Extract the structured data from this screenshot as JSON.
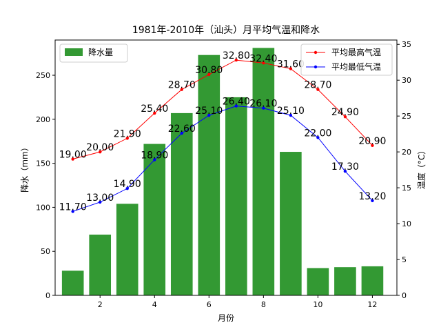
{
  "chart_data": {
    "type": "bar+line",
    "title": "1981年-2010年（汕头）月平均气温和降水",
    "xlabel": "月份",
    "ylabel_left": "降水（mm）",
    "ylabel_right": "温度（°C）",
    "x": [
      1,
      2,
      3,
      4,
      5,
      6,
      7,
      8,
      9,
      10,
      11,
      12
    ],
    "xticks": [
      2,
      4,
      6,
      8,
      10,
      12
    ],
    "xlim": [
      0.35,
      12.9
    ],
    "ylim_left": [
      0,
      290
    ],
    "yticks_left": [
      0,
      50,
      100,
      150,
      200,
      250
    ],
    "ylim_right": [
      0,
      35.6
    ],
    "yticks_right": [
      0,
      5,
      10,
      15,
      20,
      25,
      30,
      35
    ],
    "bars": {
      "name": "降水量",
      "color": "#339933",
      "values": [
        28,
        69,
        104,
        172,
        207,
        273,
        225,
        281,
        163,
        31,
        32,
        33
      ]
    },
    "series": [
      {
        "name": "平均最高气温",
        "color": "#ff0000",
        "values": [
          19.0,
          20.0,
          21.9,
          25.4,
          28.7,
          30.8,
          32.8,
          32.4,
          31.6,
          28.7,
          24.9,
          20.9
        ],
        "labels": [
          "19.00",
          "20.00",
          "21.90",
          "25.40",
          "28.70",
          "30.80",
          "32.80",
          "32.40",
          "31.60",
          "28.70",
          "24.90",
          "20.90"
        ]
      },
      {
        "name": "平均最低气温",
        "color": "#0000ff",
        "values": [
          11.7,
          13.0,
          14.9,
          18.9,
          22.6,
          25.1,
          26.4,
          26.1,
          25.1,
          22.0,
          17.3,
          13.2
        ],
        "labels": [
          "11.70",
          "13.00",
          "14.90",
          "18.90",
          "22.60",
          "25.10",
          "26.40",
          "26.10",
          "25.10",
          "22.00",
          "17.30",
          "13.20"
        ]
      }
    ],
    "legend_left_position": "upper-left",
    "legend_right_position": "upper-right",
    "grid": false
  }
}
